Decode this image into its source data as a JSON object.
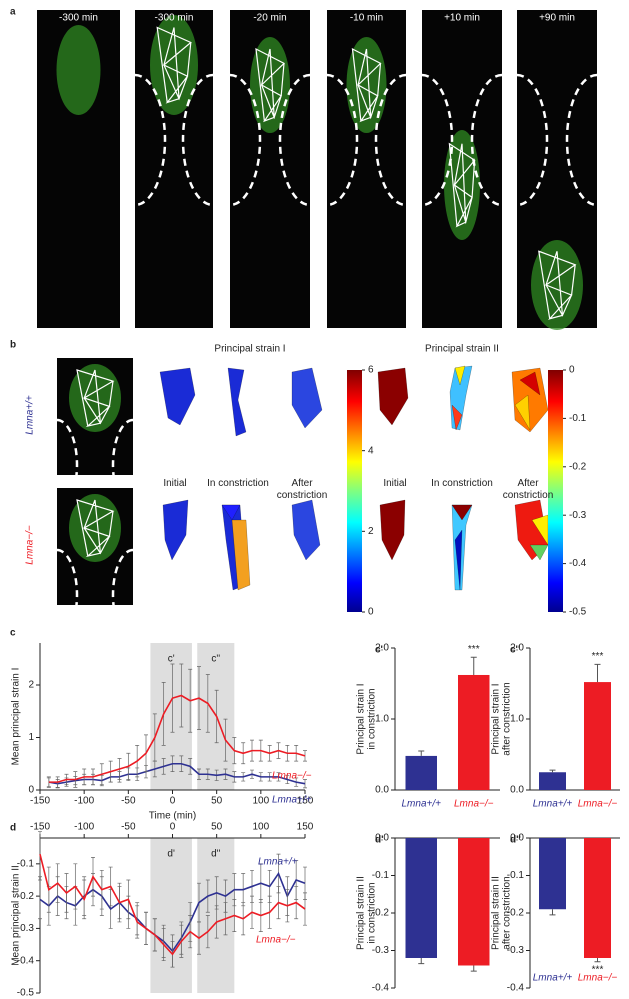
{
  "panel_labels": [
    "a",
    "b"
  ],
  "panel_a": {
    "times": [
      "-300 min",
      "-300 min",
      "-20 min",
      "-10 min",
      "+10 min",
      "+90 min"
    ]
  },
  "panel_b": {
    "column_titles": [
      "Principal strain I",
      "Principal strain II"
    ],
    "row_labels": [
      "Lmna+/+",
      "Lmna−/−"
    ],
    "stage_labels": [
      "Initial",
      "In constriction",
      "After constriction"
    ],
    "colorbars": [
      {
        "lim": [
          0,
          6
        ],
        "ticks": [
          0,
          2,
          4,
          6
        ]
      },
      {
        "lim": [
          -0.5,
          0
        ],
        "ticks": [
          0,
          -0.1,
          -0.2,
          -0.3,
          -0.4,
          -0.5
        ]
      }
    ]
  },
  "chart_data": [
    {
      "type": "line",
      "panel_label": "c",
      "xlabel": "Time (min)",
      "ylabel": "Mean principal strain I",
      "x_axis": "bottom",
      "x": [
        -140,
        -130,
        -120,
        -110,
        -100,
        -90,
        -80,
        -70,
        -60,
        -50,
        -40,
        -30,
        -20,
        -10,
        0,
        10,
        20,
        30,
        40,
        50,
        60,
        70,
        80,
        90,
        100,
        110,
        120,
        130,
        140,
        150
      ],
      "xlim": [
        -150,
        150
      ],
      "xticks": [
        -150,
        -100,
        -50,
        0,
        50,
        100,
        150
      ],
      "ylim": [
        0,
        2.8
      ],
      "yticks": [
        0,
        1,
        2
      ],
      "spans": [
        {
          "label": "c'",
          "range": [
            -25,
            22
          ]
        },
        {
          "label": "c''",
          "range": [
            28,
            70
          ]
        }
      ],
      "series": [
        {
          "name": "Lmna+/+",
          "color": "#2e3192",
          "values": [
            0.15,
            0.12,
            0.15,
            0.18,
            0.2,
            0.2,
            0.18,
            0.25,
            0.25,
            0.3,
            0.3,
            0.35,
            0.4,
            0.45,
            0.5,
            0.5,
            0.45,
            0.3,
            0.3,
            0.28,
            0.3,
            0.25,
            0.25,
            0.3,
            0.25,
            0.25,
            0.25,
            0.2,
            0.15,
            0.12
          ],
          "errors": [
            0.08,
            0.08,
            0.08,
            0.08,
            0.1,
            0.1,
            0.1,
            0.1,
            0.1,
            0.12,
            0.12,
            0.12,
            0.15,
            0.15,
            0.15,
            0.15,
            0.15,
            0.1,
            0.1,
            0.1,
            0.1,
            0.1,
            0.08,
            0.08,
            0.08,
            0.08,
            0.08,
            0.08,
            0.08,
            0.08
          ]
        },
        {
          "name": "Lmna−/−",
          "color": "#ed1c24",
          "values": [
            0.15,
            0.15,
            0.2,
            0.2,
            0.25,
            0.25,
            0.3,
            0.35,
            0.4,
            0.45,
            0.55,
            0.7,
            1.0,
            1.45,
            1.75,
            1.8,
            1.7,
            1.75,
            1.65,
            1.4,
            0.95,
            0.75,
            0.7,
            0.75,
            0.75,
            0.7,
            0.75,
            0.7,
            0.7,
            0.65
          ],
          "errors": [
            0.1,
            0.1,
            0.1,
            0.15,
            0.15,
            0.15,
            0.2,
            0.2,
            0.2,
            0.25,
            0.3,
            0.35,
            0.45,
            0.6,
            0.65,
            0.6,
            0.6,
            0.6,
            0.55,
            0.5,
            0.4,
            0.25,
            0.2,
            0.2,
            0.2,
            0.15,
            0.15,
            0.15,
            0.15,
            0.1
          ]
        }
      ]
    },
    {
      "type": "bar",
      "panel_label": "c'",
      "ylabel": [
        "Principal strain I",
        "in constriction"
      ],
      "categories": [
        "Lmna+/+",
        "Lmna−/−"
      ],
      "colors": [
        "#2e3192",
        "#ed1c24"
      ],
      "values": [
        0.48,
        1.62
      ],
      "errors": [
        0.07,
        0.25
      ],
      "significance": [
        null,
        "***"
      ],
      "ylim": [
        0,
        2
      ],
      "yticks": [
        {
          "value": 0,
          "label": "0.0"
        },
        {
          "value": 1,
          "label": "1.0"
        },
        {
          "value": 2,
          "label": "2.0"
        }
      ]
    },
    {
      "type": "bar",
      "panel_label": "c''",
      "ylabel": [
        "Principal strain I",
        "after constriction"
      ],
      "categories": [
        "Lmna+/+",
        "Lmna−/−"
      ],
      "colors": [
        "#2e3192",
        "#ed1c24"
      ],
      "values": [
        0.25,
        1.52
      ],
      "errors": [
        0.03,
        0.25
      ],
      "significance": [
        null,
        "***"
      ],
      "ylim": [
        0,
        2
      ],
      "yticks": [
        {
          "value": 0,
          "label": "0.0"
        },
        {
          "value": 1,
          "label": "1.0"
        },
        {
          "value": 2,
          "label": "2.0"
        }
      ]
    },
    {
      "type": "line",
      "panel_label": "d",
      "ylabel": "Mean principal strain II",
      "x_axis": "top",
      "x": [
        -150,
        -140,
        -130,
        -120,
        -110,
        -100,
        -90,
        -80,
        -70,
        -60,
        -50,
        -40,
        -30,
        -20,
        -10,
        0,
        10,
        20,
        30,
        40,
        50,
        60,
        70,
        80,
        90,
        100,
        110,
        120,
        130,
        140,
        150
      ],
      "xlim": [
        -150,
        150
      ],
      "xticks": [
        -150,
        -100,
        -50,
        0,
        50,
        100,
        150
      ],
      "ylim": [
        -0.5,
        -0.02
      ],
      "yticks": [
        -0.5,
        -0.4,
        -0.3,
        -0.2,
        -0.1
      ],
      "spans": [
        {
          "label": "d'",
          "range": [
            -25,
            22
          ]
        },
        {
          "label": "d''",
          "range": [
            28,
            70
          ]
        }
      ],
      "series": [
        {
          "name": "Lmna+/+",
          "color": "#2e3192",
          "values": [
            -0.21,
            -0.23,
            -0.2,
            -0.22,
            -0.23,
            -0.2,
            -0.18,
            -0.2,
            -0.24,
            -0.22,
            -0.25,
            -0.27,
            -0.3,
            -0.32,
            -0.34,
            -0.37,
            -0.33,
            -0.28,
            -0.22,
            -0.2,
            -0.19,
            -0.2,
            -0.18,
            -0.18,
            -0.17,
            -0.16,
            -0.17,
            -0.13,
            -0.2,
            -0.15,
            -0.16
          ],
          "errors": [
            0.06,
            0.06,
            0.06,
            0.05,
            0.06,
            0.06,
            0.05,
            0.06,
            0.06,
            0.05,
            0.05,
            0.05,
            0.05,
            0.05,
            0.05,
            0.05,
            0.05,
            0.06,
            0.06,
            0.05,
            0.05,
            0.05,
            0.05,
            0.05,
            0.05,
            0.06,
            0.05,
            0.06,
            0.06,
            0.06,
            0.05
          ]
        },
        {
          "name": "Lmna−/−",
          "color": "#ed1c24",
          "values": [
            -0.07,
            -0.18,
            -0.16,
            -0.19,
            -0.17,
            -0.21,
            -0.14,
            -0.18,
            -0.17,
            -0.22,
            -0.21,
            -0.28,
            -0.3,
            -0.32,
            -0.35,
            -0.38,
            -0.34,
            -0.31,
            -0.33,
            -0.31,
            -0.28,
            -0.27,
            -0.26,
            -0.27,
            -0.25,
            -0.26,
            -0.25,
            -0.22,
            -0.23,
            -0.22,
            -0.24
          ],
          "errors": [
            0.07,
            0.07,
            0.06,
            0.06,
            0.07,
            0.06,
            0.06,
            0.06,
            0.06,
            0.06,
            0.06,
            0.05,
            0.05,
            0.05,
            0.05,
            0.04,
            0.05,
            0.05,
            0.05,
            0.05,
            0.05,
            0.05,
            0.05,
            0.05,
            0.05,
            0.05,
            0.05,
            0.05,
            0.05,
            0.05,
            0.05
          ]
        }
      ]
    },
    {
      "type": "bar",
      "panel_label": "d'",
      "ylabel": [
        "Principal strain II",
        "in constriction"
      ],
      "categories": [
        null,
        null
      ],
      "colors": [
        "#2e3192",
        "#ed1c24"
      ],
      "values": [
        -0.32,
        -0.34
      ],
      "errors": [
        0.015,
        0.015
      ],
      "significance": [
        null,
        null
      ],
      "ylim": [
        -0.4,
        0
      ],
      "yticks": [
        {
          "value": 0,
          "label": "0.0"
        },
        -0.1,
        -0.2,
        -0.3,
        -0.4
      ]
    },
    {
      "type": "bar",
      "panel_label": "d''",
      "ylabel": [
        "Principal strain II",
        "after constriction"
      ],
      "categories": [
        "Lmna+/+",
        "Lmna−/−"
      ],
      "colors": [
        "#2e3192",
        "#ed1c24"
      ],
      "values": [
        -0.19,
        -0.32
      ],
      "errors": [
        0.015,
        0.01
      ],
      "significance": [
        null,
        "***"
      ],
      "ylim": [
        -0.4,
        0
      ],
      "yticks": [
        {
          "value": 0,
          "label": "0.0"
        },
        -0.1,
        -0.2,
        -0.3,
        -0.4
      ]
    }
  ]
}
